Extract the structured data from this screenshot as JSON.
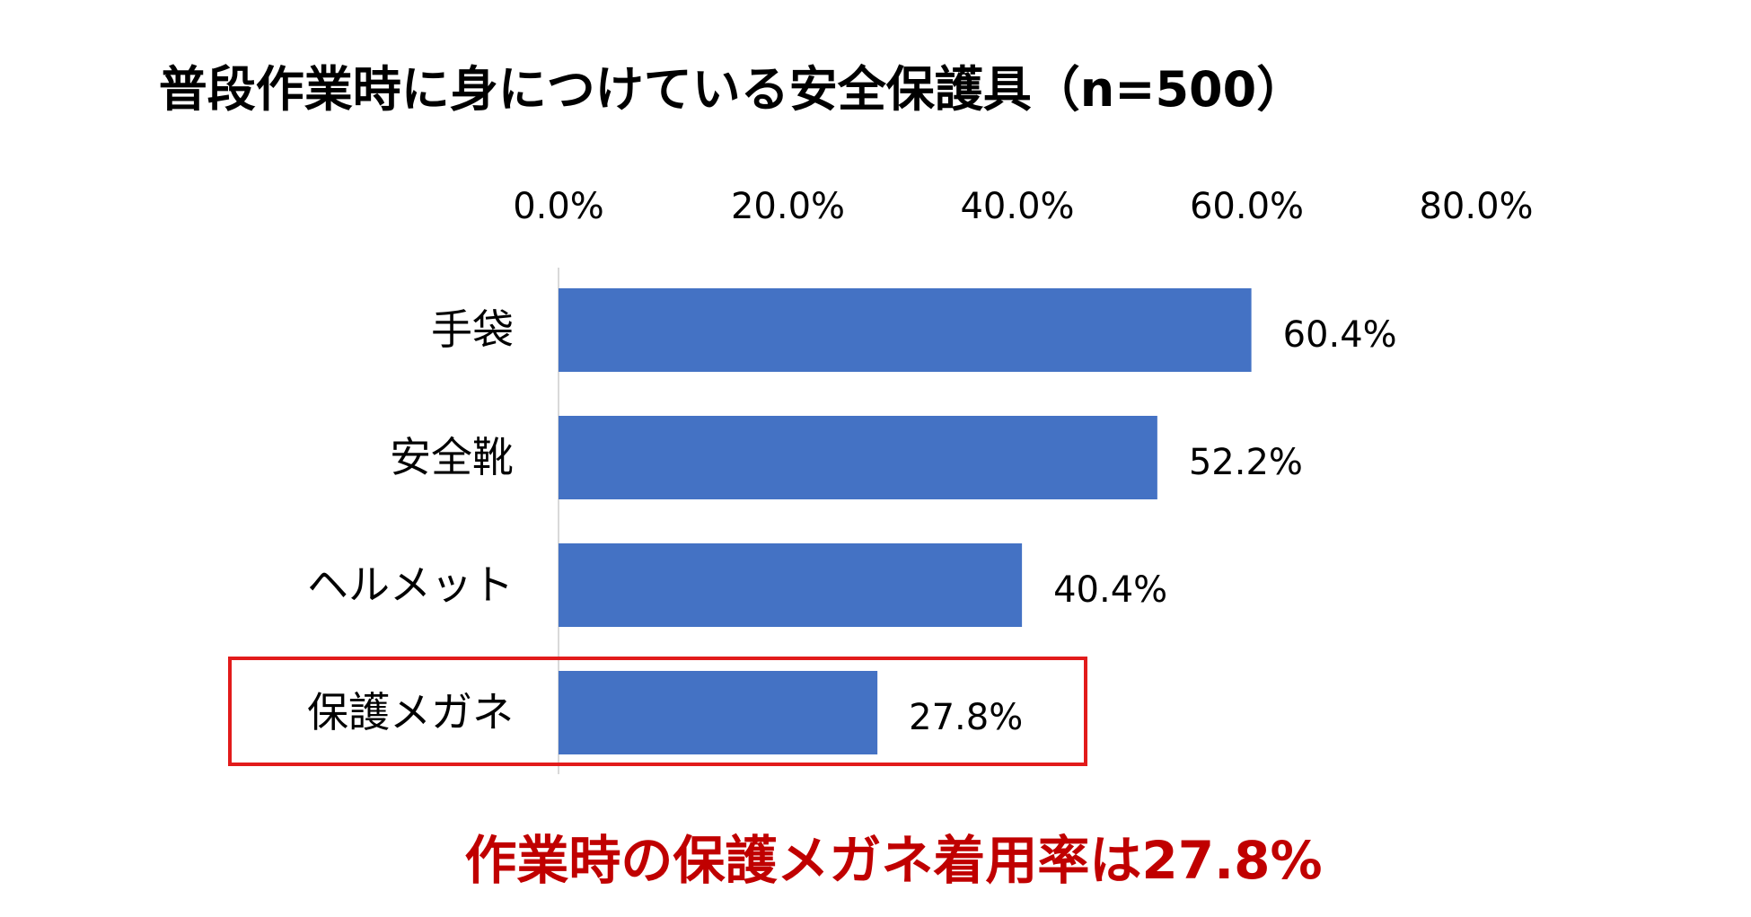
{
  "chart_data": {
    "type": "bar",
    "orientation": "horizontal",
    "title": "普段作業時に身につけている安全保護具（n=500）",
    "categories": [
      "手袋",
      "安全靴",
      "ヘルメット",
      "保護メガネ"
    ],
    "values": [
      60.4,
      52.2,
      40.4,
      27.8
    ],
    "data_labels": [
      "60.4%",
      "52.2%",
      "40.4%",
      "27.8%"
    ],
    "x_ticks": [
      "0.0%",
      "20.0%",
      "40.0%",
      "60.0%",
      "80.0%"
    ],
    "xlim": [
      0,
      80
    ],
    "x_axis_position": "top",
    "grid": false,
    "legend": "none",
    "highlighted_category": "保護メガネ",
    "annotation": "作業時の保護メガネ着用率は27.8%",
    "bar_color": "#4472C4",
    "highlight_color": "#E21B1B",
    "annotation_color": "#C00000"
  }
}
